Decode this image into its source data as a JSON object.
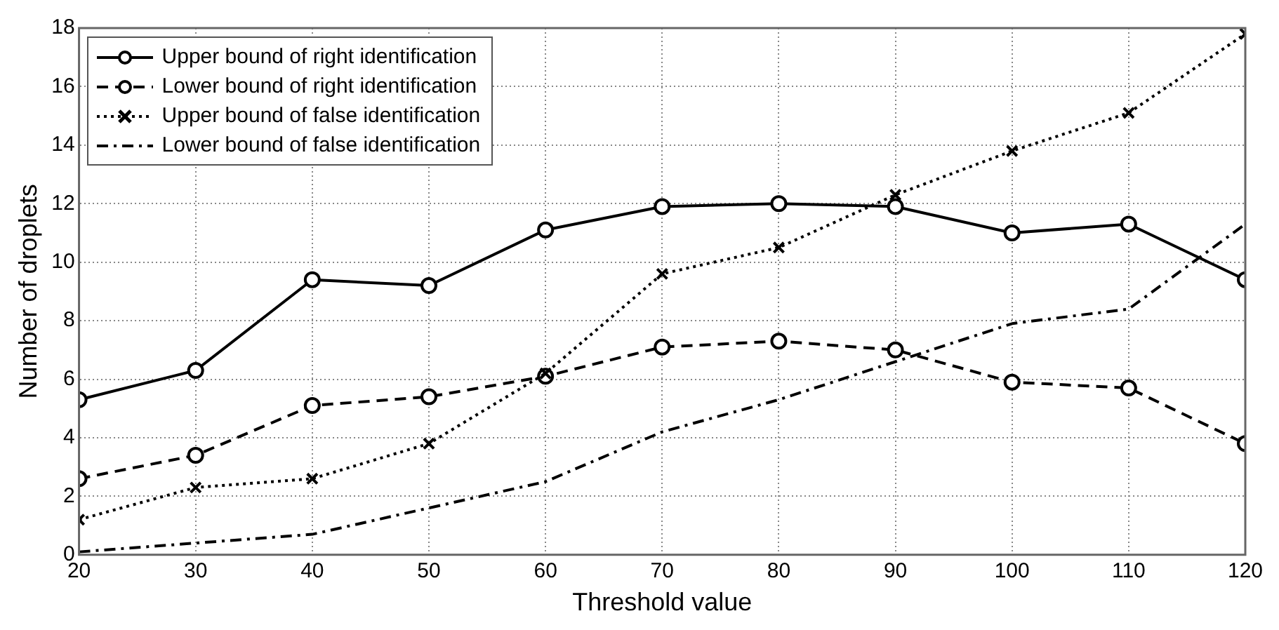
{
  "chart_data": {
    "type": "line",
    "xlabel": "Threshold value",
    "ylabel": "Number of droplets",
    "x": [
      20,
      30,
      40,
      50,
      60,
      70,
      80,
      90,
      100,
      110,
      120
    ],
    "series": [
      {
        "name": "Upper bound of right identification",
        "color": "#000000",
        "marker": "circle",
        "line_style": "solid",
        "values": [
          5.3,
          6.3,
          9.4,
          9.2,
          11.1,
          11.9,
          12.0,
          11.9,
          11.0,
          11.3,
          9.4
        ]
      },
      {
        "name": "Lower bound of right identification",
        "color": "#000000",
        "marker": "circle",
        "line_style": "dashed",
        "values": [
          2.6,
          3.4,
          5.1,
          5.4,
          6.1,
          7.1,
          7.3,
          7.0,
          5.9,
          5.7,
          3.8
        ]
      },
      {
        "name": "Upper bound of false identification",
        "color": "#000000",
        "marker": "cross",
        "line_style": "dotted",
        "values": [
          1.2,
          2.3,
          2.6,
          3.8,
          6.2,
          9.6,
          10.5,
          12.3,
          13.8,
          15.1,
          17.8
        ]
      },
      {
        "name": "Lower bound of false identification",
        "color": "#000000",
        "marker": "none",
        "line_style": "dashdot",
        "values": [
          0.1,
          0.4,
          0.7,
          1.6,
          2.5,
          4.2,
          5.3,
          6.6,
          7.9,
          8.4,
          11.3
        ]
      }
    ],
    "xlim": [
      20,
      120
    ],
    "xticks": [
      20,
      30,
      40,
      50,
      60,
      70,
      80,
      90,
      100,
      110,
      120
    ],
    "ylim": [
      0,
      18
    ],
    "yticks": [
      0,
      2,
      4,
      6,
      8,
      10,
      12,
      14,
      16,
      18
    ],
    "grid": true,
    "legend": "top left"
  }
}
